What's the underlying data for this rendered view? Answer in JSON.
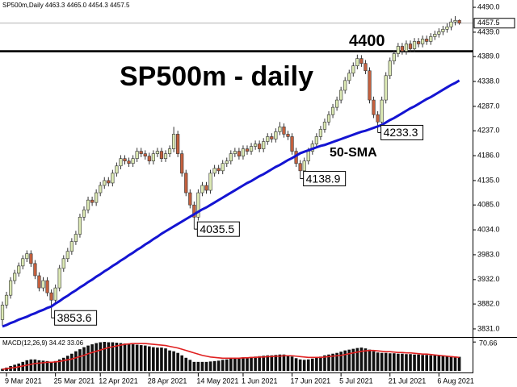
{
  "chart_data": [
    {
      "type": "candlestick",
      "header": "SP500m,Daily  4463.3 4465.0 4454.3 4457.5",
      "title": "SP500m - daily",
      "level": 4400,
      "categories": [
        null,
        "9 Mar 2021",
        null,
        null,
        null,
        null,
        null,
        null,
        null,
        null,
        null,
        null,
        null,
        "25 Mar 2021",
        null,
        null,
        null,
        null,
        null,
        null,
        null,
        null,
        null,
        null,
        "12 Apr 2021",
        null,
        null,
        null,
        null,
        null,
        null,
        null,
        null,
        null,
        null,
        null,
        "28 Apr 2021",
        null,
        null,
        null,
        null,
        null,
        null,
        null,
        null,
        null,
        null,
        null,
        "14 May 2021",
        null,
        null,
        null,
        null,
        null,
        null,
        null,
        null,
        null,
        null,
        "1 Jun 2021",
        null,
        null,
        null,
        null,
        null,
        null,
        null,
        null,
        null,
        null,
        null,
        "17 Jun 2021",
        null,
        null,
        null,
        null,
        null,
        null,
        null,
        null,
        null,
        null,
        null,
        "5 Jul 2021",
        null,
        null,
        null,
        null,
        null,
        null,
        null,
        null,
        null,
        null,
        null,
        "21 Jul 2021",
        null,
        null,
        null,
        null,
        null,
        null,
        null,
        null,
        null,
        null,
        null,
        "6 Aug 2021",
        null,
        null,
        null,
        null,
        null
      ],
      "open": [
        3850,
        3880,
        3900,
        3930,
        3945,
        3960,
        3975,
        3985,
        3965,
        3940,
        3915,
        3930,
        3905,
        3890,
        3915,
        3955,
        3975,
        3990,
        4010,
        4025,
        4060,
        4075,
        4095,
        4090,
        4110,
        4125,
        4135,
        4130,
        4150,
        4165,
        4180,
        4175,
        4170,
        4180,
        4195,
        4190,
        4185,
        4175,
        4190,
        4195,
        4180,
        4190,
        4200,
        4230,
        4190,
        4150,
        4110,
        4085,
        4060,
        4110,
        4125,
        4115,
        4150,
        4160,
        4155,
        4170,
        4175,
        4190,
        4195,
        4185,
        4200,
        4195,
        4205,
        4210,
        4200,
        4215,
        4225,
        4220,
        4235,
        4245,
        4230,
        4225,
        4195,
        4170,
        4155,
        4175,
        4195,
        4210,
        4225,
        4240,
        4255,
        4270,
        4285,
        4300,
        4320,
        4340,
        4355,
        4370,
        4385,
        4375,
        4360,
        4300,
        4270,
        4255,
        4300,
        4350,
        4380,
        4395,
        4410,
        4400,
        4415,
        4405,
        4420,
        4415,
        4425,
        4420,
        4430,
        4435,
        4440,
        4445,
        4450,
        4460,
        4463.3
      ],
      "high": [
        3887,
        3907,
        3937,
        3952,
        3967,
        3982,
        3992,
        3992,
        3972,
        3947,
        3937,
        3937,
        3912,
        3922,
        3962,
        3982,
        3997,
        4017,
        4032,
        4067,
        4082,
        4102,
        4102,
        4117,
        4132,
        4142,
        4142,
        4157,
        4172,
        4187,
        4187,
        4182,
        4187,
        4202,
        4202,
        4197,
        4192,
        4197,
        4202,
        4202,
        4197,
        4207,
        4245,
        4237,
        4197,
        4157,
        4117,
        4092,
        4117,
        4132,
        4132,
        4157,
        4167,
        4167,
        4177,
        4182,
        4197,
        4202,
        4202,
        4207,
        4207,
        4212,
        4217,
        4217,
        4222,
        4232,
        4232,
        4242,
        4255,
        4252,
        4237,
        4232,
        4202,
        4177,
        4182,
        4202,
        4217,
        4232,
        4247,
        4262,
        4277,
        4292,
        4307,
        4327,
        4347,
        4362,
        4377,
        4393,
        4392,
        4382,
        4367,
        4307,
        4277,
        4307,
        4357,
        4387,
        4402,
        4417,
        4417,
        4422,
        4422,
        4427,
        4427,
        4432,
        4432,
        4437,
        4442,
        4447,
        4452,
        4457,
        4467,
        4472,
        4465.0
      ],
      "low": [
        3838,
        3873,
        3893,
        3923,
        3938,
        3953,
        3968,
        3958,
        3933,
        3908,
        3908,
        3898,
        3853.6,
        3883,
        3908,
        3948,
        3968,
        3983,
        4003,
        4018,
        4053,
        4068,
        4083,
        4083,
        4103,
        4118,
        4123,
        4123,
        4143,
        4158,
        4168,
        4163,
        4163,
        4173,
        4183,
        4178,
        4168,
        4168,
        4183,
        4173,
        4173,
        4183,
        4193,
        4183,
        4143,
        4103,
        4078,
        4035.5,
        4053,
        4103,
        4108,
        4108,
        4143,
        4148,
        4148,
        4163,
        4168,
        4183,
        4178,
        4178,
        4188,
        4188,
        4198,
        4193,
        4193,
        4208,
        4213,
        4213,
        4228,
        4223,
        4218,
        4188,
        4163,
        4138.9,
        4148,
        4168,
        4188,
        4203,
        4218,
        4233,
        4248,
        4263,
        4278,
        4293,
        4313,
        4333,
        4348,
        4363,
        4368,
        4353,
        4293,
        4263,
        4233.3,
        4248,
        4293,
        4343,
        4373,
        4388,
        4393,
        4393,
        4398,
        4398,
        4408,
        4408,
        4413,
        4413,
        4423,
        4428,
        4433,
        4438,
        4443,
        4453,
        4454.3
      ],
      "close": [
        3880,
        3900,
        3930,
        3945,
        3960,
        3975,
        3985,
        3965,
        3940,
        3915,
        3930,
        3905,
        3890,
        3915,
        3955,
        3975,
        3990,
        4010,
        4025,
        4060,
        4075,
        4095,
        4090,
        4110,
        4125,
        4135,
        4130,
        4150,
        4165,
        4180,
        4175,
        4170,
        4180,
        4195,
        4190,
        4185,
        4175,
        4190,
        4195,
        4180,
        4190,
        4200,
        4230,
        4190,
        4150,
        4110,
        4085,
        4060,
        4110,
        4125,
        4115,
        4150,
        4160,
        4155,
        4170,
        4175,
        4190,
        4195,
        4185,
        4200,
        4195,
        4205,
        4210,
        4200,
        4215,
        4225,
        4220,
        4235,
        4245,
        4230,
        4225,
        4195,
        4170,
        4155,
        4175,
        4195,
        4210,
        4225,
        4240,
        4255,
        4270,
        4285,
        4300,
        4320,
        4340,
        4355,
        4370,
        4385,
        4375,
        4360,
        4300,
        4270,
        4255,
        4300,
        4350,
        4380,
        4395,
        4410,
        4400,
        4415,
        4405,
        4420,
        4415,
        4425,
        4420,
        4430,
        4435,
        4440,
        4445,
        4450,
        4460,
        4463,
        4457.5
      ],
      "up_color": "#dce9b4",
      "down_color": "#c4603e",
      "series": [
        {
          "name": "50-SMA",
          "color": "#1414d2",
          "values": [
            3836,
            3839,
            3843,
            3846,
            3850,
            3853,
            3856,
            3860,
            3863,
            3867,
            3870,
            3874,
            3877,
            3883,
            3888,
            3894,
            3899,
            3905,
            3910,
            3916,
            3921,
            3927,
            3932,
            3938,
            3943,
            3949,
            3954,
            3960,
            3965,
            3971,
            3976,
            3982,
            3987,
            3993,
            3998,
            4004,
            4009,
            4015,
            4020,
            4026,
            4031,
            4036,
            4041,
            4046,
            4051,
            4056,
            4061,
            4066,
            4071,
            4076,
            4080,
            4085,
            4090,
            4095,
            4100,
            4105,
            4110,
            4115,
            4120,
            4125,
            4130,
            4134,
            4139,
            4144,
            4148,
            4153,
            4158,
            4163,
            4167,
            4172,
            4177,
            4181,
            4186,
            4191,
            4194,
            4197,
            4200,
            4203,
            4206,
            4208,
            4211,
            4214,
            4217,
            4220,
            4223,
            4226,
            4229,
            4232,
            4235,
            4237,
            4240,
            4243,
            4246,
            4249,
            4254,
            4259,
            4263,
            4268,
            4273,
            4278,
            4283,
            4287,
            4292,
            4297,
            4302,
            4306,
            4311,
            4316,
            4321,
            4326,
            4331,
            4335,
            4340
          ]
        }
      ],
      "ylim": [
        3821,
        4500
      ],
      "yticks": [
        {
          "value": 4490,
          "label": "4490.0"
        },
        {
          "value": 4439,
          "label": "4439.0"
        },
        {
          "value": 4389,
          "label": "4389.0"
        },
        {
          "value": 4338,
          "label": "4338.0"
        },
        {
          "value": 4287,
          "label": "4287.0"
        },
        {
          "value": 4237,
          "label": "4237.0"
        },
        {
          "value": 4186,
          "label": "4186.0"
        },
        {
          "value": 4135,
          "label": "4135.0"
        },
        {
          "value": 4085,
          "label": "4085.0"
        },
        {
          "value": 4034,
          "label": "4034.0"
        },
        {
          "value": 3983,
          "label": "3983.0"
        },
        {
          "value": 3932,
          "label": "3932.0"
        },
        {
          "value": 3882,
          "label": "3882.0"
        },
        {
          "value": 3831,
          "label": "3831.0"
        }
      ]
    },
    {
      "type": "macd",
      "header": "MACD(12,26,9) 34.42 33.06",
      "histogram": [
        5,
        8,
        12,
        15,
        18,
        22,
        26,
        28,
        28,
        26,
        25,
        24,
        22,
        24,
        28,
        32,
        37,
        42,
        48,
        53,
        58,
        62,
        65,
        68,
        70,
        71,
        70,
        70,
        69,
        68,
        67,
        66,
        65,
        64,
        63,
        62,
        60,
        58,
        57,
        57,
        55,
        50,
        48,
        44,
        38,
        32,
        27,
        22,
        22,
        22,
        22,
        23,
        24,
        25,
        27,
        28,
        30,
        31,
        32,
        33,
        33,
        34,
        35,
        36,
        37,
        38,
        38,
        39,
        40,
        40,
        38,
        35,
        31,
        28,
        27,
        28,
        30,
        32,
        35,
        38,
        40,
        42,
        44,
        47,
        50,
        52,
        54,
        56,
        57,
        55,
        52,
        48,
        45,
        44,
        44,
        43,
        43,
        42,
        42,
        41,
        41,
        40,
        40,
        39,
        39,
        38,
        38,
        37,
        37,
        36,
        36,
        35,
        34.42
      ],
      "histogram_color": "#111111",
      "signal": [
        4,
        5,
        7,
        8,
        10,
        12,
        14,
        16,
        18,
        19,
        20,
        21,
        21,
        22,
        23,
        25,
        27,
        29,
        32,
        35,
        38,
        42,
        45,
        48,
        51,
        54,
        57,
        59,
        61,
        63,
        65,
        66,
        67,
        67,
        67,
        67,
        66,
        65,
        64,
        63,
        62,
        60,
        58,
        56,
        53,
        50,
        47,
        44,
        41,
        38,
        36,
        34,
        33,
        32,
        31,
        31,
        31,
        31,
        31,
        32,
        32,
        33,
        33,
        34,
        34,
        35,
        35,
        36,
        36,
        37,
        37,
        37,
        36,
        35,
        34,
        33,
        33,
        33,
        33,
        34,
        35,
        36,
        37,
        38,
        40,
        42,
        44,
        46,
        48,
        49,
        50,
        50,
        49,
        48,
        47,
        47,
        46,
        45,
        45,
        44,
        44,
        43,
        42,
        41,
        41,
        40,
        39,
        38,
        37,
        36,
        35,
        34,
        33.06
      ],
      "signal_color": "#e02020",
      "ylim": [
        0,
        75
      ],
      "yticks": [
        70.66
      ]
    }
  ]
}
